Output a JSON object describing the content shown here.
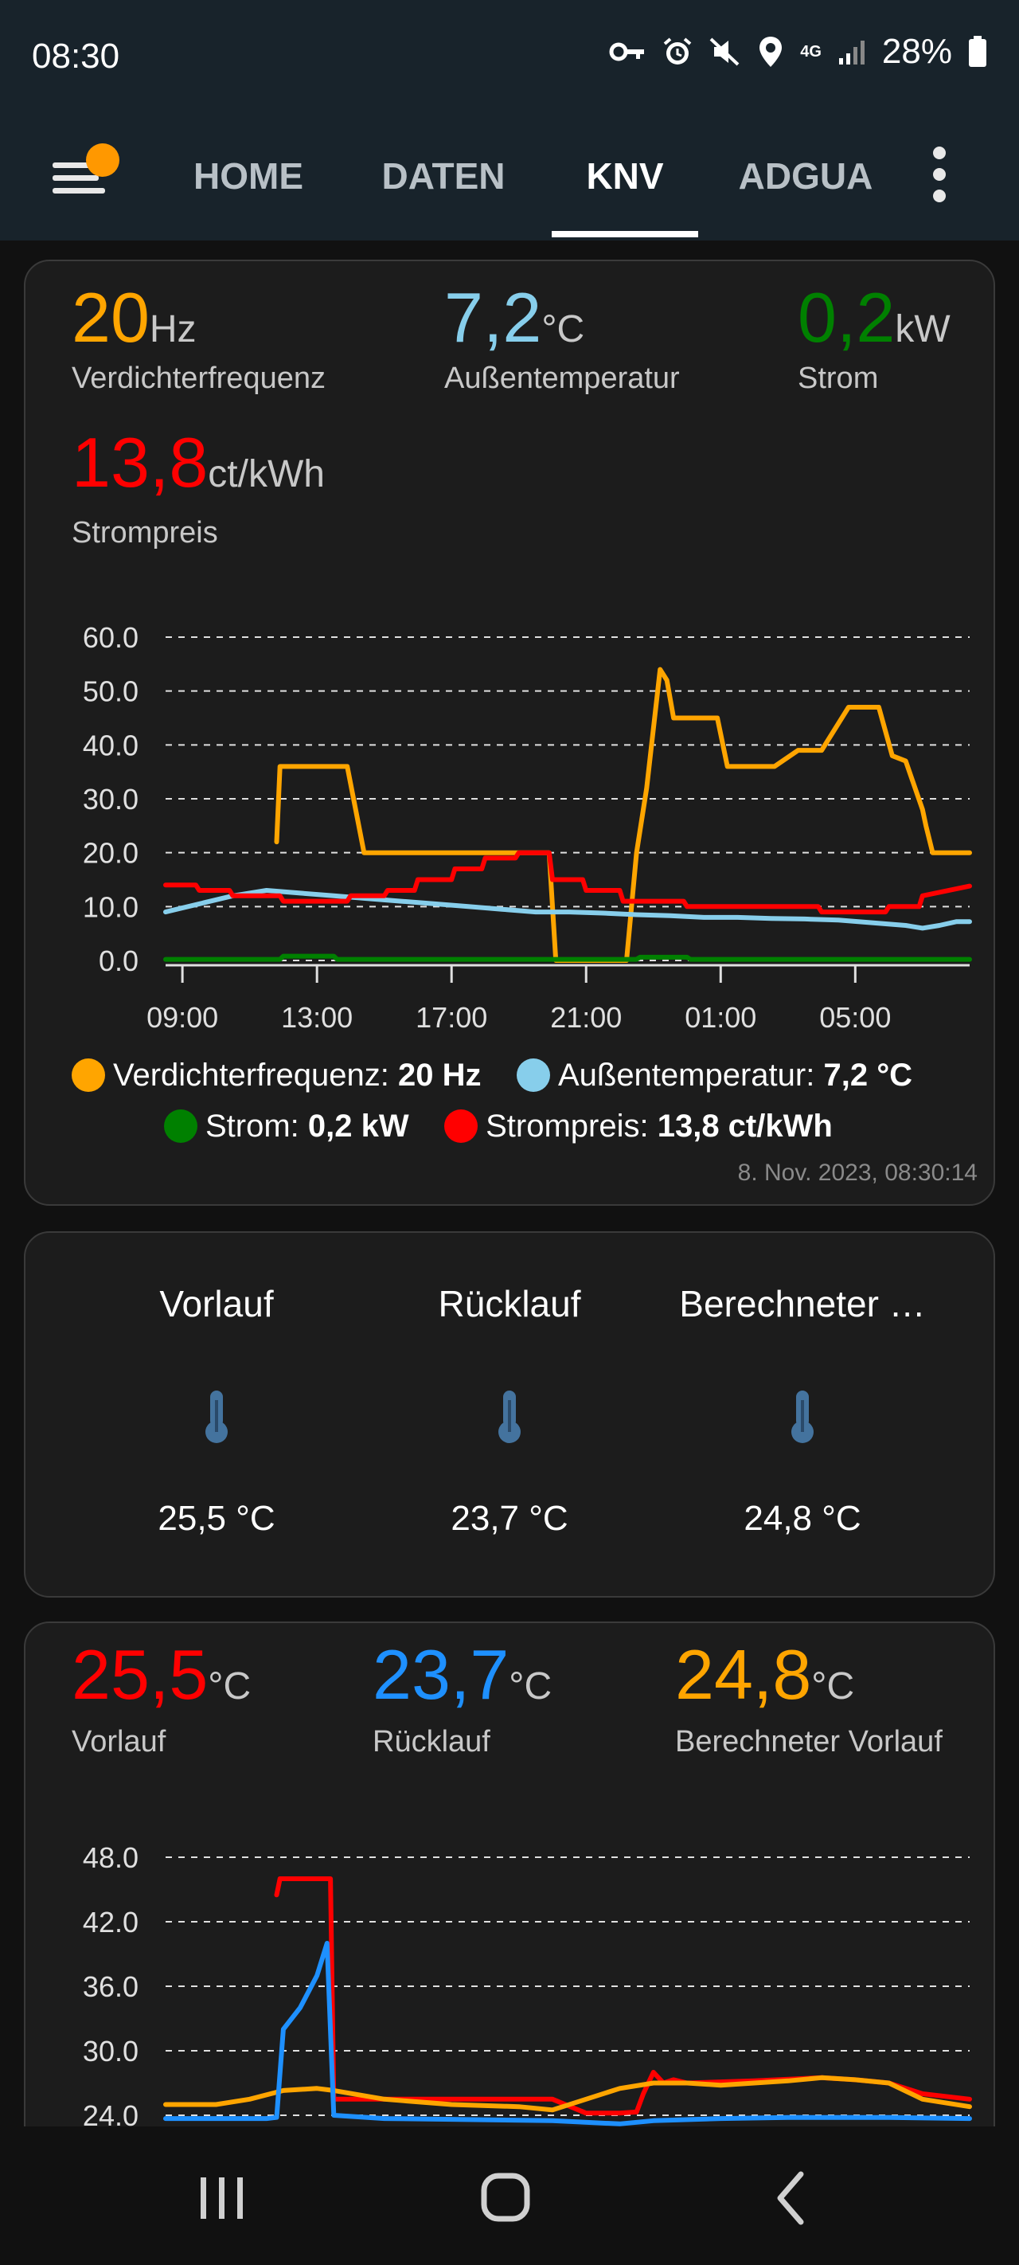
{
  "status_bar": {
    "time": "08:30",
    "network": "4G",
    "battery": "28%"
  },
  "tabs": [
    {
      "label": "HOME",
      "active": false
    },
    {
      "label": "DATEN",
      "active": false
    },
    {
      "label": "KNV",
      "active": true
    },
    {
      "label": "ADGUA",
      "active": false
    }
  ],
  "card1": {
    "values": [
      {
        "num": "20",
        "unit": "Hz",
        "label": "Verdichterfrequenz",
        "color": "#ffa500"
      },
      {
        "num": "7,2",
        "unit": "°C",
        "label": "Außentemperatur",
        "color": "#87ceeb"
      },
      {
        "num": "0,2",
        "unit": "kW",
        "label": "Strom",
        "color": "#008000"
      },
      {
        "num": "13,8",
        "unit": "ct/kWh",
        "label": "Strompreis",
        "color": "#ff0000"
      }
    ],
    "legend": [
      {
        "name": "Verdichterfrequenz:",
        "value": "20 Hz",
        "color": "#ffa500"
      },
      {
        "name": "Außentemperatur:",
        "value": "7,2 °C",
        "color": "#87ceeb"
      },
      {
        "name": "Strom:",
        "value": "0,2 kW",
        "color": "#008000"
      },
      {
        "name": "Strompreis:",
        "value": "13,8 ct/kWh",
        "color": "#ff0000"
      }
    ],
    "timestamp": "8. Nov. 2023, 08:30:14"
  },
  "card2": {
    "entities": [
      {
        "name": "Vorlauf",
        "state": "25,5 °C",
        "icon": "thermometer-icon"
      },
      {
        "name": "Rücklauf",
        "state": "23,7 °C",
        "icon": "thermometer-icon"
      },
      {
        "name": "Berechneter …",
        "state": "24,8 °C",
        "icon": "thermometer-icon"
      }
    ]
  },
  "card3": {
    "values": [
      {
        "num": "25,5",
        "unit": "°C",
        "label": "Vorlauf",
        "color": "#ff0000"
      },
      {
        "num": "23,7",
        "unit": "°C",
        "label": "Rücklauf",
        "color": "#1e90ff"
      },
      {
        "num": "24,8",
        "unit": "°C",
        "label": "Berechneter Vorlauf",
        "color": "#ffa500"
      }
    ]
  },
  "chart_data": [
    {
      "type": "line",
      "xlabel": "",
      "ylabel": "",
      "x_ticks": [
        "09:00",
        "13:00",
        "17:00",
        "21:00",
        "01:00",
        "05:00"
      ],
      "y_ticks": [
        "60.0",
        "50.0",
        "40.0",
        "30.0",
        "20.0",
        "10.0",
        "0.0"
      ],
      "xlim": [
        8.5,
        32.4
      ],
      "ylim": [
        0,
        60
      ],
      "grid": true,
      "series": [
        {
          "name": "Verdichterfrequenz",
          "color": "#ffa500",
          "x": [
            11.8,
            11.9,
            12.5,
            13.9,
            14.4,
            16.0,
            19.0,
            19.9,
            20.1,
            22.2,
            22.5,
            22.8,
            23.2,
            23.4,
            23.6,
            24.0,
            24.9,
            25.2,
            26.0,
            26.6,
            27.3,
            27.6,
            28.0,
            28.8,
            29.1,
            29.7,
            30.1,
            30.5,
            31.0,
            31.1,
            31.3,
            32.4
          ],
          "y": [
            22,
            36,
            36,
            36,
            20,
            20,
            20,
            20,
            0,
            0,
            20,
            32,
            54,
            52,
            45,
            45,
            45,
            36,
            36,
            36,
            39,
            39,
            39,
            47,
            47,
            47,
            38,
            37,
            28,
            25,
            20,
            20
          ]
        },
        {
          "name": "Außentemperatur",
          "color": "#87ceeb",
          "x": [
            8.5,
            9.5,
            10.5,
            11.5,
            12.5,
            13.5,
            14.5,
            15.5,
            16.5,
            17.5,
            18.5,
            19.5,
            20.5,
            21.5,
            22.5,
            23.5,
            24.5,
            25.5,
            26.5,
            27.5,
            28.5,
            29.5,
            30.5,
            31.0,
            31.5,
            32.0,
            32.4
          ],
          "y": [
            9,
            10.5,
            12,
            13,
            12.5,
            12,
            11.5,
            11,
            10.5,
            10,
            9.5,
            9,
            9,
            8.8,
            8.5,
            8.3,
            8,
            8,
            7.8,
            7.7,
            7.5,
            7,
            6.5,
            6,
            6.5,
            7.2,
            7.2
          ]
        },
        {
          "name": "Strom",
          "color": "#008000",
          "x": [
            8.5,
            11.9,
            12.0,
            13.5,
            13.6,
            20.0,
            22.5,
            22.6,
            24.0,
            24.1,
            32.4
          ],
          "y": [
            0.2,
            0.2,
            0.8,
            0.8,
            0.2,
            0.2,
            0.2,
            0.6,
            0.6,
            0.2,
            0.2
          ]
        },
        {
          "name": "Strompreis",
          "color": "#ff0000",
          "x": [
            8.5,
            9.4,
            9.5,
            10.4,
            10.5,
            11.9,
            12.0,
            13.9,
            14.0,
            15.0,
            15.1,
            15.9,
            16.0,
            17.0,
            17.1,
            17.9,
            18.0,
            18.9,
            19.0,
            19.9,
            20.0,
            20.9,
            21.0,
            22.0,
            22.1,
            23.9,
            24.0,
            25.9,
            26.0,
            27.9,
            28.0,
            29.9,
            30.0,
            30.9,
            31.0,
            32.4
          ],
          "y": [
            14,
            14,
            13,
            13,
            12,
            12,
            11,
            11,
            12,
            12,
            13,
            13,
            15,
            15,
            17,
            17,
            19,
            19,
            20,
            20,
            15,
            15,
            13,
            13,
            11,
            11,
            10,
            10,
            10,
            10,
            9,
            9,
            10,
            10,
            12,
            13.8
          ]
        }
      ]
    },
    {
      "type": "line",
      "xlabel": "",
      "ylabel": "",
      "y_ticks": [
        "48.0",
        "42.0",
        "36.0",
        "30.0",
        "24.0"
      ],
      "xlim": [
        8.5,
        32.4
      ],
      "ylim": [
        24,
        48
      ],
      "grid": true,
      "series": [
        {
          "name": "Vorlauf",
          "color": "#ff0000",
          "x": [
            11.8,
            11.9,
            12.5,
            13.0,
            13.4,
            13.5,
            17.0,
            20.0,
            21.0,
            22.0,
            22.5,
            22.7,
            23.0,
            23.3,
            23.6,
            24.0,
            26.0,
            28.0,
            29.0,
            30.0,
            31.0,
            32.4
          ],
          "y": [
            44.5,
            46,
            46,
            46,
            46,
            25.5,
            25.5,
            25.5,
            24.2,
            24.2,
            24.3,
            26.0,
            28.0,
            27.0,
            27.3,
            27.0,
            27.2,
            27.5,
            27.3,
            27.0,
            26.0,
            25.5
          ]
        },
        {
          "name": "Berechneter Vorlauf",
          "color": "#ffa500",
          "x": [
            8.5,
            10.0,
            11.0,
            12.0,
            13.0,
            13.5,
            15.0,
            17.0,
            19.0,
            20.0,
            21.0,
            22.0,
            23.0,
            24.0,
            25.0,
            26.0,
            27.0,
            28.0,
            29.0,
            30.0,
            31.0,
            32.4
          ],
          "y": [
            25.0,
            25.0,
            25.5,
            26.3,
            26.5,
            26.3,
            25.5,
            25.0,
            24.8,
            24.5,
            25.5,
            26.5,
            27.0,
            27.0,
            26.8,
            27.0,
            27.2,
            27.5,
            27.3,
            27.0,
            25.5,
            24.8
          ]
        },
        {
          "name": "Rücklauf",
          "color": "#1e90ff",
          "x": [
            8.5,
            11.5,
            11.8,
            12.0,
            12.5,
            13.0,
            13.3,
            13.5,
            15.0,
            20.0,
            22.0,
            23.0,
            25.0,
            27.0,
            30.0,
            32.4
          ],
          "y": [
            23.7,
            23.7,
            23.8,
            32.0,
            34.0,
            37.0,
            40.0,
            24.0,
            23.7,
            23.5,
            23.2,
            23.5,
            23.7,
            23.8,
            23.8,
            23.7
          ]
        }
      ]
    }
  ]
}
